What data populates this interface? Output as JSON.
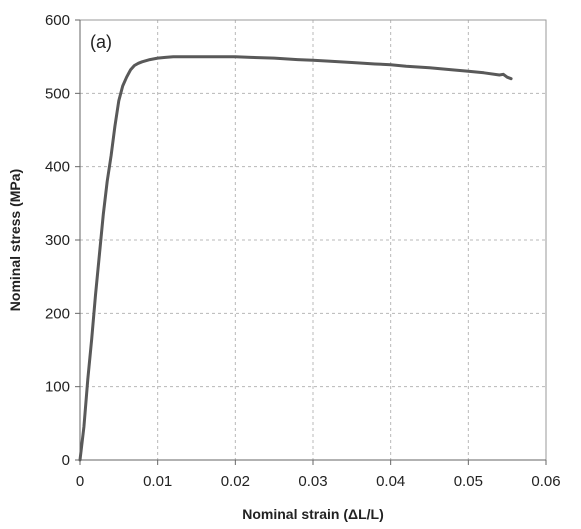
{
  "chart_data": {
    "type": "line",
    "title": "",
    "annotation": "(a)",
    "xlabel": "Nominal strain (ΔL/L)",
    "ylabel": "Nominal  stress (MPa)",
    "xlim": [
      0,
      0.06
    ],
    "ylim": [
      0,
      600
    ],
    "xticks": [
      0,
      0.01,
      0.02,
      0.03,
      0.04,
      0.05,
      0.06
    ],
    "xtick_labels": [
      "0",
      "0.01",
      "0.02",
      "0.03",
      "0.04",
      "0.05",
      "0.06"
    ],
    "yticks": [
      0,
      100,
      200,
      300,
      400,
      500,
      600
    ],
    "ytick_labels": [
      "0",
      "100",
      "200",
      "300",
      "400",
      "500",
      "600"
    ],
    "grid": true,
    "legend": "none",
    "series": [
      {
        "color": "#595959",
        "x": [
          0,
          0.0005,
          0.001,
          0.0015,
          0.002,
          0.0025,
          0.003,
          0.0035,
          0.004,
          0.0045,
          0.005,
          0.0055,
          0.006,
          0.0065,
          0.007,
          0.0075,
          0.008,
          0.009,
          0.01,
          0.011,
          0.012,
          0.014,
          0.016,
          0.018,
          0.02,
          0.022,
          0.025,
          0.028,
          0.03,
          0.032,
          0.035,
          0.038,
          0.04,
          0.042,
          0.045,
          0.048,
          0.05,
          0.052,
          0.054,
          0.0545,
          0.055,
          0.0555
        ],
        "y": [
          0,
          45,
          110,
          165,
          225,
          280,
          335,
          380,
          415,
          455,
          490,
          510,
          522,
          532,
          538,
          541,
          543,
          546,
          548,
          549,
          550,
          550,
          550,
          550,
          550,
          549,
          548,
          546,
          545,
          544,
          542,
          540,
          539,
          537,
          535,
          532,
          530,
          528,
          525,
          526,
          522,
          520
        ]
      }
    ]
  }
}
